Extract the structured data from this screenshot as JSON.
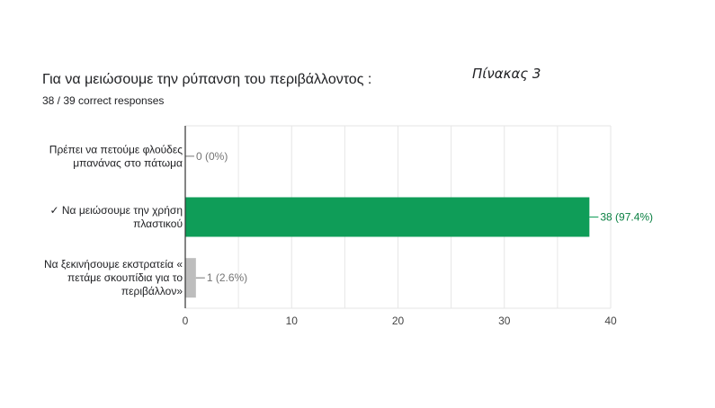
{
  "header": {
    "question": "Για να μειώσουμε την ρύπανση του περιβάλλοντος :",
    "responses": "38 / 39 correct responses",
    "caption": "Πίνακας 3"
  },
  "colors": {
    "correct_bar": "#0f9d58",
    "other_bar": "#bdbdbd",
    "correct_label": "#0b8043",
    "other_label": "#757575",
    "grid": "#e6e6e6",
    "axis": "#333333"
  },
  "chart_data": {
    "type": "bar",
    "orientation": "horizontal",
    "title": "Για να μειώσουμε την ρύπανση του περιβάλλοντος :",
    "categories": [
      [
        "Πρέπει να πετούμε φλούδες",
        "μπανάνας στο πάτωμα"
      ],
      [
        "✓ Να μειώσουμε την χρήση",
        "πλαστικού"
      ],
      [
        "Να ξεκινήσουμε εκστρατεία «",
        "πετάμε σκουπίδια για το",
        "περιβάλλον»"
      ]
    ],
    "values": [
      0,
      38,
      1
    ],
    "value_labels": [
      "0 (0%)",
      "38 (97.4%)",
      "1 (2.6%)"
    ],
    "correct": [
      false,
      true,
      false
    ],
    "xlim": [
      0,
      40
    ],
    "xticks": [
      0,
      10,
      20,
      30,
      40
    ],
    "grid": true,
    "legend": "none"
  }
}
